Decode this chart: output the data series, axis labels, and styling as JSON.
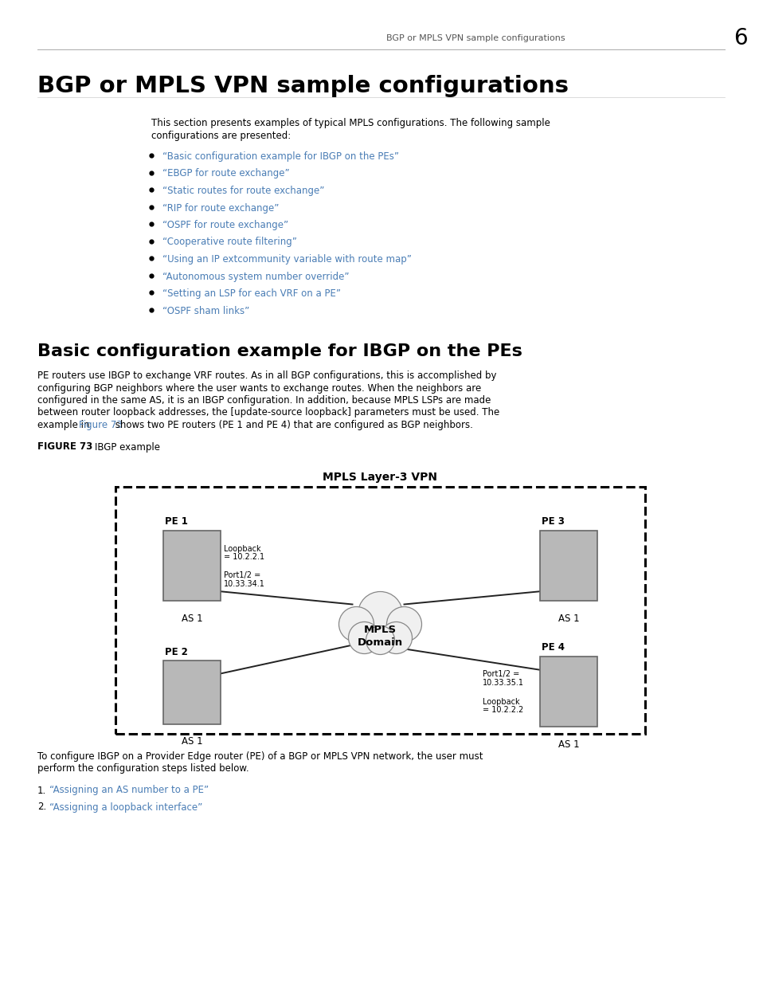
{
  "page_header_text": "BGP or MPLS VPN sample configurations",
  "page_number": "6",
  "main_title": "BGP or MPLS VPN sample configurations",
  "intro_line1": "This section presents examples of typical MPLS configurations. The following sample",
  "intro_line2": "configurations are presented:",
  "bullet_items": [
    "“Basic configuration example for IBGP on the PEs”",
    "“EBGP for route exchange”",
    "“Static routes for route exchange”",
    "“RIP for route exchange”",
    "“OSPF for route exchange”",
    "“Cooperative route filtering”",
    "“Using an IP extcommunity variable with route map”",
    "“Autonomous system number override”",
    "“Setting an LSP for each VRF on a PE”",
    "“OSPF sham links”"
  ],
  "section_title": "Basic configuration example for IBGP on the PEs",
  "body1_lines": [
    "PE routers use IBGP to exchange VRF routes. As in all BGP configurations, this is accomplished by",
    "configuring BGP neighbors where the user wants to exchange routes. When the neighbors are",
    "configured in the same AS, it is an IBGP configuration. In addition, because MPLS LSPs are made",
    "between router loopback addresses, the [update-source loopback] parameters must be used. The",
    "example in "
  ],
  "body1_line4_link": "Figure 73",
  "body1_line4_rest": " shows two PE routers (PE 1 and PE 4) that are configured as BGP neighbors.",
  "figure_label": "FIGURE 73",
  "figure_label_rest": "    IBGP example",
  "diagram_title": "MPLS Layer-3 VPN",
  "body2_lines": [
    "To configure IBGP on a Provider Edge router (PE) of a BGP or MPLS VPN network, the user must",
    "perform the configuration steps listed below."
  ],
  "numbered_items": [
    "“Assigning an AS number to a PE”",
    "“Assigning a loopback interface”"
  ],
  "link_color": "#4a7db5",
  "text_color": "#000000",
  "bg_color": "#ffffff",
  "header_color": "#555555",
  "router_fill": "#b8b8b8",
  "router_edge": "#666666",
  "cloud_fill": "#f0f0f0",
  "cloud_edge": "#888888"
}
